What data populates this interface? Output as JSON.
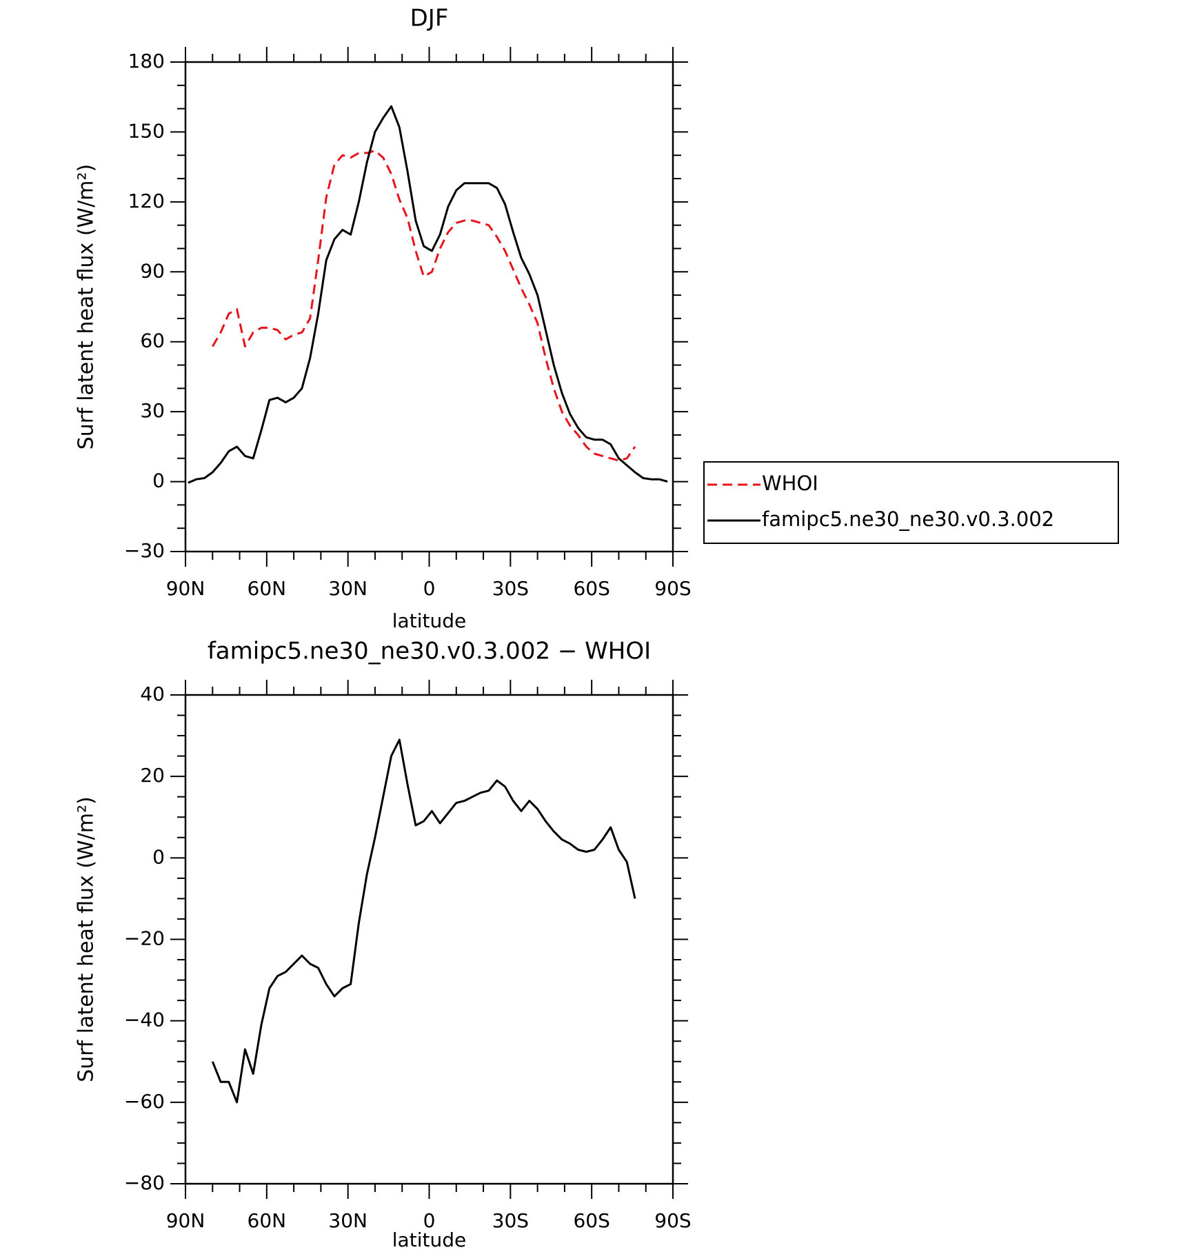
{
  "chart_data": [
    {
      "type": "line",
      "title": "DJF",
      "x_label": "latitude",
      "y_label": "Surf latent heat flux (W/m²)",
      "x": [
        89,
        86,
        83,
        80,
        77,
        74,
        71,
        68,
        65,
        62,
        59,
        56,
        53,
        50,
        47,
        44,
        41,
        38,
        35,
        32,
        29,
        26,
        23,
        20,
        17,
        14,
        11,
        8,
        5,
        2,
        -1,
        -4,
        -7,
        -10,
        -13,
        -16,
        -19,
        -22,
        -25,
        -28,
        -31,
        -34,
        -37,
        -40,
        -43,
        -46,
        -49,
        -52,
        -55,
        -58,
        -61,
        -64,
        -67,
        -70,
        -73,
        -76,
        -79,
        -82,
        -85,
        -88
      ],
      "xlim": [
        90,
        -90
      ],
      "xticks": [
        {
          "value": 90,
          "label": "90N"
        },
        {
          "value": 60,
          "label": "60N"
        },
        {
          "value": 30,
          "label": "30N"
        },
        0,
        {
          "value": -30,
          "label": "30S"
        },
        {
          "value": -60,
          "label": "60S"
        },
        {
          "value": -90,
          "label": "90S"
        }
      ],
      "ylim": [
        -30,
        180
      ],
      "yticks": [
        {
          "value": -30,
          "label": "−30"
        },
        0,
        30,
        60,
        90,
        120,
        150,
        180
      ],
      "legend": "right",
      "series": [
        {
          "name": "WHOI",
          "color": "#e8141b",
          "dashed": true,
          "values": [
            null,
            null,
            null,
            58,
            64,
            72,
            74,
            58,
            64,
            66,
            66,
            65,
            61,
            63,
            64,
            70,
            95,
            122,
            136,
            140,
            139,
            141,
            141,
            142,
            139,
            132,
            121,
            113,
            99,
            88,
            90,
            100,
            107,
            111,
            112,
            112,
            111,
            110,
            105,
            99,
            91,
            83,
            76,
            68,
            53,
            40,
            30,
            24,
            20,
            15,
            12,
            11,
            10,
            9,
            10,
            15,
            null,
            null,
            null,
            null
          ]
        },
        {
          "name": "famipc5.ne30_ne30.v0.3.002",
          "color": "#000000",
          "dashed": false,
          "values": [
            -0.5,
            1,
            1.5,
            4,
            8,
            13,
            15,
            11,
            10,
            22,
            35,
            36,
            34,
            36,
            40,
            53,
            72,
            95,
            104,
            108,
            106,
            120,
            137,
            150,
            156,
            161,
            152,
            133,
            112,
            101,
            99,
            106,
            118,
            125,
            128,
            128,
            128,
            128,
            126,
            119,
            107,
            96,
            89,
            80,
            65,
            50,
            38,
            29,
            23,
            19,
            18,
            18,
            16,
            10,
            7,
            4,
            1.5,
            1,
            1,
            0
          ]
        }
      ]
    },
    {
      "type": "line",
      "title": "famipc5.ne30_ne30.v0.3.002 − WHOI",
      "x_label": "latitude",
      "y_label": "Surf latent heat flux (W/m²)",
      "x": [
        89,
        86,
        83,
        80,
        77,
        74,
        71,
        68,
        65,
        62,
        59,
        56,
        53,
        50,
        47,
        44,
        41,
        38,
        35,
        32,
        29,
        26,
        23,
        20,
        17,
        14,
        11,
        8,
        5,
        2,
        -1,
        -4,
        -7,
        -10,
        -13,
        -16,
        -19,
        -22,
        -25,
        -28,
        -31,
        -34,
        -37,
        -40,
        -43,
        -46,
        -49,
        -52,
        -55,
        -58,
        -61,
        -64,
        -67,
        -70,
        -73,
        -76,
        -79,
        -82,
        -85,
        -88
      ],
      "xlim": [
        90,
        -90
      ],
      "xticks": [
        {
          "value": 90,
          "label": "90N"
        },
        {
          "value": 60,
          "label": "60N"
        },
        {
          "value": 30,
          "label": "30N"
        },
        0,
        {
          "value": -30,
          "label": "30S"
        },
        {
          "value": -60,
          "label": "60S"
        },
        {
          "value": -90,
          "label": "90S"
        }
      ],
      "ylim": [
        -80,
        40
      ],
      "yticks": [
        {
          "value": -80,
          "label": "−80"
        },
        {
          "value": -60,
          "label": "−60"
        },
        {
          "value": -40,
          "label": "−40"
        },
        {
          "value": -20,
          "label": "−20"
        },
        0,
        20,
        40
      ],
      "series": [
        {
          "color": "#000000",
          "dashed": false,
          "values": [
            null,
            null,
            null,
            -50,
            -55,
            -55,
            -60,
            -47,
            -53,
            -41,
            -32,
            -29,
            -28,
            -26,
            -24,
            -26,
            -27,
            -31,
            -34,
            -32,
            -31,
            -16,
            -4,
            5,
            15,
            25,
            29,
            18,
            8,
            9,
            11.5,
            8.5,
            11,
            13.5,
            14,
            15,
            16,
            16.5,
            19,
            17.5,
            14,
            11.5,
            14,
            12,
            9,
            6.5,
            4.5,
            3.5,
            2,
            1.5,
            2,
            4.5,
            7.5,
            2,
            -1,
            -10,
            null,
            null,
            null,
            null
          ]
        }
      ]
    }
  ]
}
